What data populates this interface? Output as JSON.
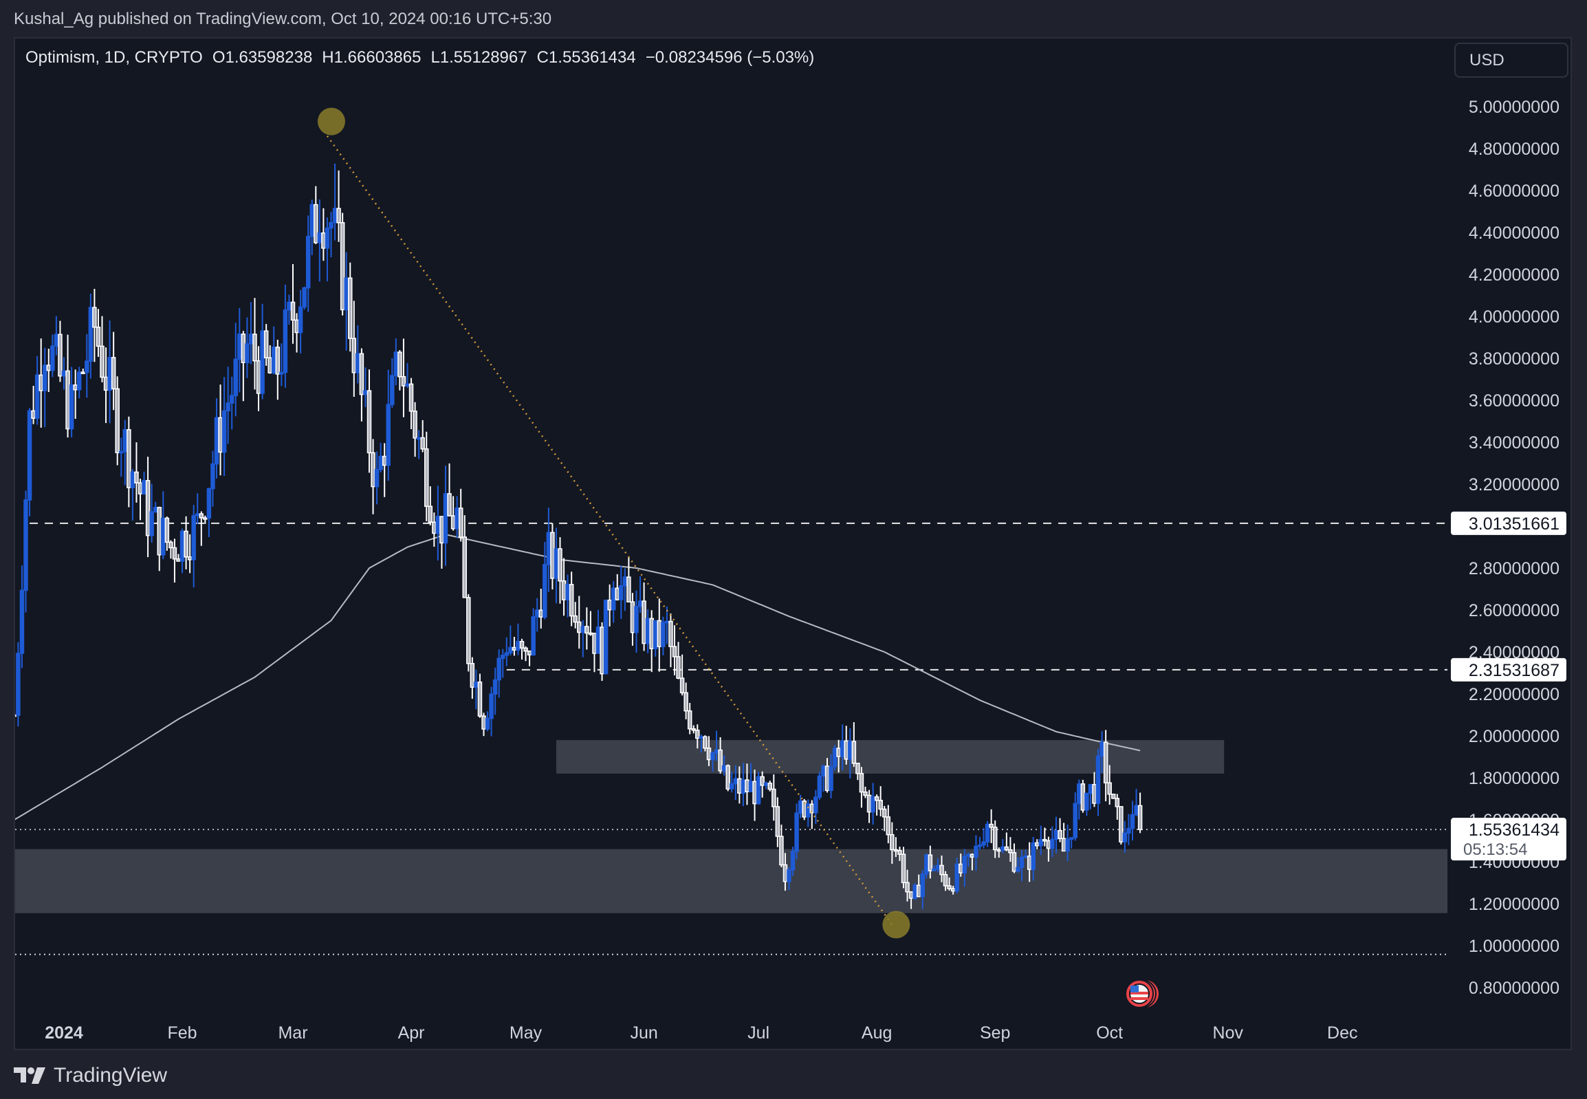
{
  "publish_line": "Kushal_Ag published on TradingView.com, Oct 10, 2024 00:16 UTC+5:30",
  "legend": {
    "symbol": "Optimism, 1D, CRYPTO",
    "open": "O1.63598238",
    "high": "H1.66603865",
    "low": "L1.55128967",
    "close": "C1.55361434",
    "change": "−0.08234596 (−5.03%)"
  },
  "currency_button": "USD",
  "footer": {
    "brand": "TradingView",
    "logo_icon": "tradingview-logo-icon"
  },
  "colors": {
    "up": "#1e5bd6",
    "down_border": "#ffffff",
    "down_fill": "#b2b5be",
    "zone": "#3a3f4a",
    "ma": "#b8bbc4",
    "trend": "#d39a3a",
    "circle": "#8a7c2a",
    "bg": "#131722"
  },
  "chart_data": {
    "type": "candlestick",
    "title": "Optimism, 1D, CRYPTO",
    "xlabel": "",
    "ylabel": "USD",
    "ylim": [
      0.7,
      5.1
    ],
    "y_ticks": [
      "5.00000000",
      "4.80000000",
      "4.60000000",
      "4.40000000",
      "4.20000000",
      "4.00000000",
      "3.80000000",
      "3.60000000",
      "3.40000000",
      "3.20000000",
      "2.80000000",
      "2.60000000",
      "2.40000000",
      "2.20000000",
      "2.00000000",
      "1.80000000",
      "1.60000000",
      "1.40000000",
      "1.20000000",
      "1.00000000",
      "0.80000000"
    ],
    "y_tick_values": [
      5.0,
      4.8,
      4.6,
      4.4,
      4.2,
      4.0,
      3.8,
      3.6,
      3.4,
      3.2,
      2.8,
      2.6,
      2.4,
      2.2,
      2.0,
      1.8,
      1.6,
      1.4,
      1.2,
      1.0,
      0.8
    ],
    "x_ticks": [
      {
        "label": "2024",
        "day": 0,
        "bold": true
      },
      {
        "label": "Feb",
        "day": 31
      },
      {
        "label": "Mar",
        "day": 60
      },
      {
        "label": "Apr",
        "day": 91
      },
      {
        "label": "May",
        "day": 121
      },
      {
        "label": "Jun",
        "day": 152
      },
      {
        "label": "Jul",
        "day": 182
      },
      {
        "label": "Aug",
        "day": 213
      },
      {
        "label": "Sep",
        "day": 244
      },
      {
        "label": "Oct",
        "day": 274
      },
      {
        "label": "Nov",
        "day": 305
      },
      {
        "label": "Dec",
        "day": 335
      }
    ],
    "price_waypoints": [
      {
        "day": -13,
        "close": 2.1
      },
      {
        "day": -9,
        "close": 3.5
      },
      {
        "day": -5,
        "close": 3.9
      },
      {
        "day": 2,
        "close": 3.55
      },
      {
        "day": 8,
        "close": 3.95
      },
      {
        "day": 14,
        "close": 3.5
      },
      {
        "day": 22,
        "close": 3.05
      },
      {
        "day": 28,
        "close": 2.9
      },
      {
        "day": 35,
        "close": 3.0
      },
      {
        "day": 42,
        "close": 3.55
      },
      {
        "day": 48,
        "close": 3.85
      },
      {
        "day": 55,
        "close": 3.7
      },
      {
        "day": 63,
        "close": 4.2
      },
      {
        "day": 67,
        "close": 4.55
      },
      {
        "day": 70,
        "close": 4.45
      },
      {
        "day": 74,
        "close": 4.1
      },
      {
        "day": 78,
        "close": 3.6
      },
      {
        "day": 82,
        "close": 3.2
      },
      {
        "day": 88,
        "close": 3.8
      },
      {
        "day": 93,
        "close": 3.4
      },
      {
        "day": 98,
        "close": 3.0
      },
      {
        "day": 103,
        "close": 3.05
      },
      {
        "day": 106,
        "close": 2.4
      },
      {
        "day": 110,
        "close": 2.1
      },
      {
        "day": 116,
        "close": 2.45
      },
      {
        "day": 121,
        "close": 2.35
      },
      {
        "day": 127,
        "close": 2.85
      },
      {
        "day": 132,
        "close": 2.7
      },
      {
        "day": 137,
        "close": 2.55
      },
      {
        "day": 141,
        "close": 2.4
      },
      {
        "day": 144,
        "close": 2.8
      },
      {
        "day": 148,
        "close": 2.6
      },
      {
        "day": 155,
        "close": 2.45
      },
      {
        "day": 158,
        "close": 2.5
      },
      {
        "day": 162,
        "close": 2.15
      },
      {
        "day": 168,
        "close": 2.0
      },
      {
        "day": 174,
        "close": 1.75
      },
      {
        "day": 180,
        "close": 1.75
      },
      {
        "day": 185,
        "close": 1.7
      },
      {
        "day": 189,
        "close": 1.35
      },
      {
        "day": 193,
        "close": 1.65
      },
      {
        "day": 198,
        "close": 1.75
      },
      {
        "day": 203,
        "close": 1.9
      },
      {
        "day": 205,
        "close": 1.96
      },
      {
        "day": 209,
        "close": 1.72
      },
      {
        "day": 214,
        "close": 1.65
      },
      {
        "day": 219,
        "close": 1.42
      },
      {
        "day": 222,
        "close": 1.18
      },
      {
        "day": 226,
        "close": 1.4
      },
      {
        "day": 232,
        "close": 1.3
      },
      {
        "day": 238,
        "close": 1.4
      },
      {
        "day": 242,
        "close": 1.6
      },
      {
        "day": 246,
        "close": 1.45
      },
      {
        "day": 252,
        "close": 1.38
      },
      {
        "day": 257,
        "close": 1.55
      },
      {
        "day": 262,
        "close": 1.45
      },
      {
        "day": 266,
        "close": 1.7
      },
      {
        "day": 270,
        "close": 1.75
      },
      {
        "day": 272,
        "close": 1.9
      },
      {
        "day": 275,
        "close": 1.65
      },
      {
        "day": 278,
        "close": 1.5
      },
      {
        "day": 280,
        "close": 1.66
      },
      {
        "day": 282,
        "close": 1.5536
      }
    ],
    "ma_line": [
      {
        "day": -13,
        "value": 1.6
      },
      {
        "day": 10,
        "value": 1.85
      },
      {
        "day": 30,
        "value": 2.08
      },
      {
        "day": 50,
        "value": 2.28
      },
      {
        "day": 70,
        "value": 2.55
      },
      {
        "day": 80,
        "value": 2.8
      },
      {
        "day": 90,
        "value": 2.9
      },
      {
        "day": 100,
        "value": 2.96
      },
      {
        "day": 110,
        "value": 2.92
      },
      {
        "day": 130,
        "value": 2.84
      },
      {
        "day": 150,
        "value": 2.8
      },
      {
        "day": 170,
        "value": 2.72
      },
      {
        "day": 190,
        "value": 2.57
      },
      {
        "day": 215,
        "value": 2.4
      },
      {
        "day": 240,
        "value": 2.17
      },
      {
        "day": 260,
        "value": 2.02
      },
      {
        "day": 272,
        "value": 1.97
      },
      {
        "day": 282,
        "value": 1.93
      }
    ],
    "horizontal_lines": [
      {
        "value": 3.01351661,
        "label": "3.01351661",
        "style": "dashed",
        "from_day": -9
      },
      {
        "value": 2.31531687,
        "label": "2.31531687",
        "style": "dashed",
        "from_day": 116
      }
    ],
    "current_price": {
      "value": 1.55361434,
      "label": "1.55361434",
      "countdown": "05:13:54"
    },
    "support_dotted_line": {
      "value": 0.958
    },
    "zones": [
      {
        "from_day": 129,
        "to_day": 304,
        "top": 1.98,
        "bottom": 1.82
      },
      {
        "from_day": -13,
        "to_day": 377,
        "top": 1.46,
        "bottom": 1.155
      }
    ],
    "trend_line": {
      "from": {
        "day": 69,
        "value": 4.86
      },
      "to": {
        "day": 217,
        "value": 1.1
      }
    },
    "markers": [
      {
        "day": 69,
        "value": 4.88,
        "type": "circle"
      },
      {
        "day": 217,
        "value": 1.1,
        "type": "circle"
      }
    ],
    "event_icon": {
      "day": 282,
      "name": "us-flag-economic-event"
    }
  }
}
